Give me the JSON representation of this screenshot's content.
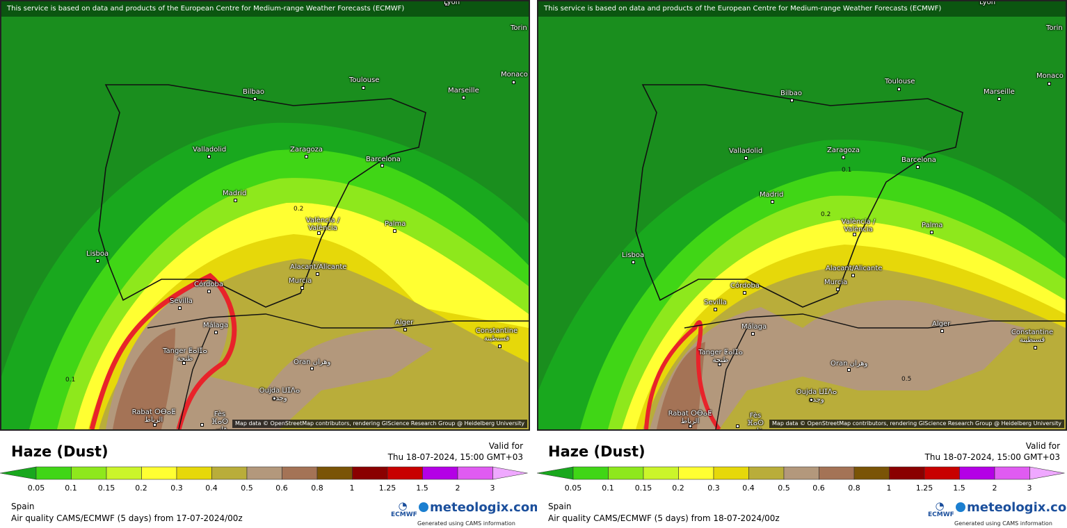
{
  "legend_colors": [
    "#19a81e",
    "#40d616",
    "#8ee81c",
    "#cbf52a",
    "#ffff32",
    "#e6d80a",
    "#b9ad3a",
    "#b3987c",
    "#a47356",
    "#7a5406",
    "#8a0000",
    "#c80000",
    "#b400e6",
    "#e05bf2",
    "#efa8ff"
  ],
  "legend_ticks": [
    "0.05",
    "0.1",
    "0.15",
    "0.2",
    "0.3",
    "0.4",
    "0.5",
    "0.6",
    "0.8",
    "1",
    "1.25",
    "1.5",
    "2",
    "3"
  ],
  "cities": [
    {
      "name": "Lyon"
    },
    {
      "name": "Torin"
    },
    {
      "name": "Monaco"
    },
    {
      "name": "Toulouse"
    },
    {
      "name": "Marseille"
    },
    {
      "name": "Bilbao"
    },
    {
      "name": "Valladolid"
    },
    {
      "name": "Zaragoza"
    },
    {
      "name": "Barcelona"
    },
    {
      "name": "Madrid"
    },
    {
      "name": "Palma"
    },
    {
      "name": "València / València"
    },
    {
      "name": "Lisboa"
    },
    {
      "name": "Alacant/Alicante"
    },
    {
      "name": "Murcia"
    },
    {
      "name": "Córdoba"
    },
    {
      "name": "Sevilla"
    },
    {
      "name": "Málaga"
    },
    {
      "name": "Alger"
    },
    {
      "name": "Constantine قسنطينة"
    },
    {
      "name": "Tanger ⵟⴰⵏⵊⴰ طنجة"
    },
    {
      "name": "Oran وهران"
    },
    {
      "name": "Oujda ⵡⵊⴷⴰ وجدة"
    },
    {
      "name": "Rabat ⵔⴱⴰⵟ الرباط"
    },
    {
      "name": "Fès ⴼⴰⵙ فاس"
    }
  ],
  "panels": [
    {
      "notice": "This service is based on data and products of the European Centre for Medium-range Weather Forecasts (ECMWF)",
      "attribution": "Map data © OpenStreetMap contributors, rendering GIScience Research Group @ Heidelberg University",
      "title": "Haze (Dust)",
      "valid_label": "Valid for",
      "valid_time": "Thu 18-07-2024, 15:00 GMT+03",
      "region": "Spain",
      "model": "Air quality CAMS/ECMWF (5 days) from  17-07-2024/00z",
      "brand": "meteologix.com",
      "ecmwf": "ECMWF",
      "generated": "Generated using CAMS information",
      "contour_labels": [
        "0.2",
        "0.1"
      ]
    },
    {
      "notice": "This service is based on data and products of the European Centre for Medium-range Weather Forecasts (ECMWF)",
      "attribution": "Map data © OpenStreetMap contributors, rendering GIScience Research Group @ Heidelberg University",
      "title": "Haze (Dust)",
      "valid_label": "Valid for",
      "valid_time": "Thu 18-07-2024, 15:00 GMT+03",
      "region": "Spain",
      "model": "Air quality CAMS/ECMWF (5 days) from  18-07-2024/00z",
      "brand": "meteologix.com",
      "ecmwf": "ECMWF",
      "generated": "Generated using CAMS information",
      "contour_labels": [
        "0.1",
        "0.2",
        "0.5"
      ]
    }
  ]
}
